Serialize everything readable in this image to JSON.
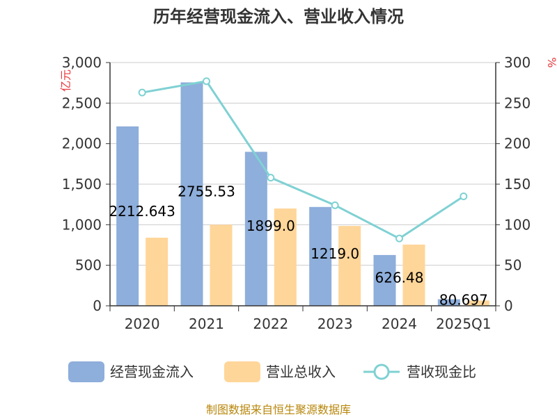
{
  "chart_data": {
    "type": "bar",
    "title": "历年经营现金流入、营业收入情况",
    "categories": [
      "2020",
      "2021",
      "2022",
      "2023",
      "2024",
      "2025Q1"
    ],
    "left_axis": {
      "unit": "亿元",
      "ylim": [
        0,
        3000
      ],
      "ticks": [
        0,
        500,
        1000,
        1500,
        2000,
        2500,
        3000
      ],
      "tick_labels": [
        "0",
        "500",
        "1,000",
        "1,500",
        "2,000",
        "2,500",
        "3,000"
      ]
    },
    "right_axis": {
      "unit": "%",
      "ylim": [
        0,
        300
      ],
      "ticks": [
        0,
        50,
        100,
        150,
        200,
        250,
        300
      ],
      "tick_labels": [
        "0",
        "50",
        "100",
        "150",
        "200",
        "250",
        "300"
      ]
    },
    "series": [
      {
        "name": "经营现金流入",
        "type": "bar",
        "axis": "left",
        "color": "#8eaedb",
        "values": [
          2212.643,
          2755.53,
          1899.0,
          1219.0,
          626.48,
          80.697
        ],
        "labels": [
          "2212.643",
          "2755.53",
          "1899.0",
          "1219.0",
          "626.48",
          "80.697"
        ]
      },
      {
        "name": "营业总收入",
        "type": "bar",
        "axis": "left",
        "color": "#ffd699",
        "values": [
          840,
          1000,
          1200,
          985,
          755,
          65
        ]
      },
      {
        "name": "营收现金比",
        "type": "line",
        "axis": "right",
        "color": "#7fd1d3",
        "values": [
          263,
          277,
          158,
          124,
          83,
          135
        ]
      }
    ],
    "grid": true,
    "legend_position": "bottom"
  },
  "source": "制图数据来自恒生聚源数据库"
}
